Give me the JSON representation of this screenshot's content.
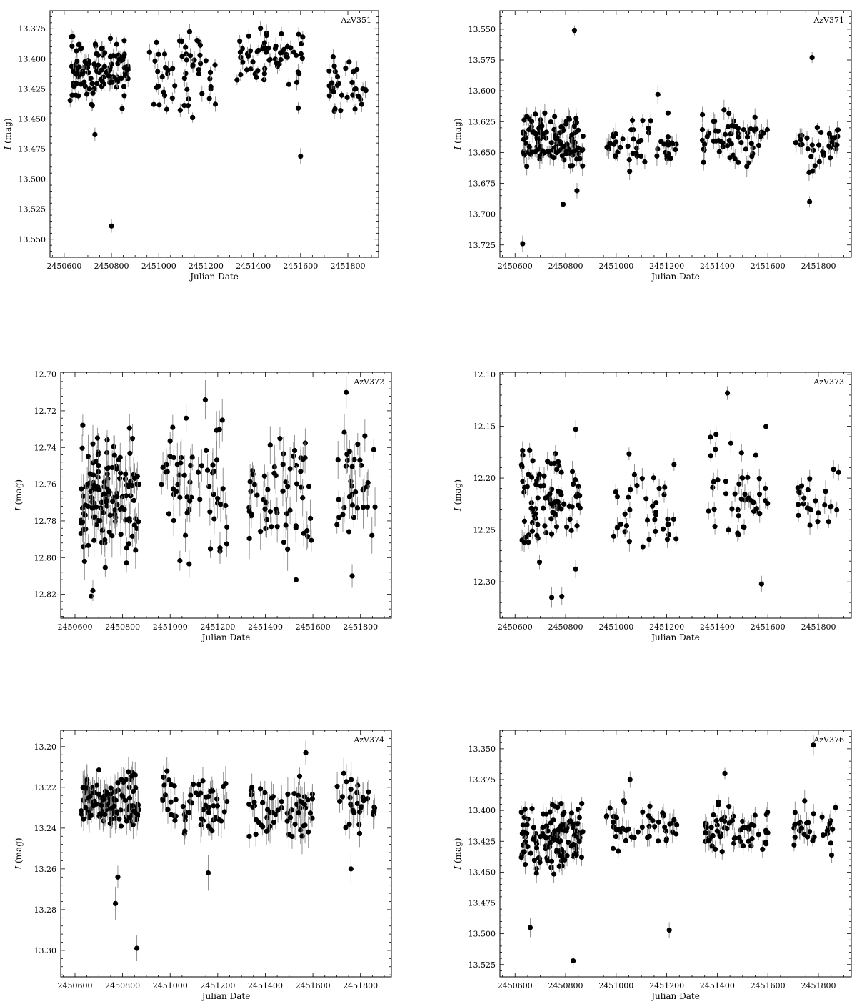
{
  "figure": {
    "xlabel": "Julian Date",
    "ylabel_var": "I",
    "ylabel_unit": " (mag)",
    "marker_color": "#000000",
    "errorbar_color": "#888888"
  },
  "chart_data": [
    {
      "type": "scatter",
      "name": "AzV351",
      "xlabel": "Julian Date",
      "ylabel": "I (mag)",
      "y_inverted": true,
      "xlim": [
        2450540,
        2451930
      ],
      "ylim": [
        13.36,
        13.565
      ],
      "xticks": [
        2450600,
        2450800,
        2451000,
        2451200,
        2451400,
        2451600,
        2451800
      ],
      "yticks": [
        13.375,
        13.4,
        13.425,
        13.45,
        13.475,
        13.5,
        13.525,
        13.55
      ],
      "ytick_labels": [
        "13.375",
        "13.400",
        "13.425",
        "13.450",
        "13.475",
        "13.500",
        "13.525",
        "13.550"
      ],
      "seasons": [
        {
          "start": 2450625,
          "end": 2450870,
          "mean": 13.41,
          "spread": 0.014,
          "n": 120
        },
        {
          "start": 2450960,
          "end": 2451240,
          "mean": 13.41,
          "spread": 0.016,
          "n": 55
        },
        {
          "start": 2451330,
          "end": 2451610,
          "mean": 13.4,
          "spread": 0.013,
          "n": 60
        },
        {
          "start": 2451700,
          "end": 2451880,
          "mean": 13.425,
          "spread": 0.01,
          "n": 35
        }
      ],
      "outliers": [
        {
          "x": 2450730,
          "y": 13.463
        },
        {
          "x": 2450800,
          "y": 13.539
        },
        {
          "x": 2451600,
          "y": 13.481
        },
        {
          "x": 2451590,
          "y": 13.441
        }
      ],
      "err": 0.005
    },
    {
      "type": "scatter",
      "name": "AzV371",
      "xlabel": "Julian Date",
      "ylabel": "I (mag)",
      "y_inverted": true,
      "xlim": [
        2450540,
        2451930
      ],
      "ylim": [
        13.535,
        13.735
      ],
      "xticks": [
        2450600,
        2450800,
        2451000,
        2451200,
        2451400,
        2451600,
        2451800
      ],
      "yticks": [
        13.55,
        13.575,
        13.6,
        13.625,
        13.65,
        13.675,
        13.7,
        13.725
      ],
      "ytick_labels": [
        "13.550",
        "13.575",
        "13.600",
        "13.625",
        "13.650",
        "13.675",
        "13.700",
        "13.725"
      ],
      "seasons": [
        {
          "start": 2450625,
          "end": 2450870,
          "mean": 13.64,
          "spread": 0.011,
          "n": 120
        },
        {
          "start": 2450960,
          "end": 2451240,
          "mean": 13.643,
          "spread": 0.01,
          "n": 50
        },
        {
          "start": 2451340,
          "end": 2451600,
          "mean": 13.638,
          "spread": 0.01,
          "n": 60
        },
        {
          "start": 2451710,
          "end": 2451880,
          "mean": 13.645,
          "spread": 0.01,
          "n": 35
        }
      ],
      "outliers": [
        {
          "x": 2450835,
          "y": 13.551
        },
        {
          "x": 2451775,
          "y": 13.573
        },
        {
          "x": 2450630,
          "y": 13.724
        },
        {
          "x": 2451765,
          "y": 13.69
        },
        {
          "x": 2450790,
          "y": 13.692
        },
        {
          "x": 2450845,
          "y": 13.681
        },
        {
          "x": 2451165,
          "y": 13.603
        }
      ],
      "err": 0.006
    },
    {
      "type": "scatter",
      "name": "AzV372",
      "xlabel": "Julian Date",
      "ylabel": "I (mag)",
      "y_inverted": true,
      "xlim": [
        2450540,
        2451930
      ],
      "ylim": [
        12.699,
        12.833
      ],
      "xticks": [
        2450600,
        2450800,
        2451000,
        2451200,
        2451400,
        2451600,
        2451800
      ],
      "yticks": [
        12.7,
        12.72,
        12.74,
        12.76,
        12.78,
        12.8,
        12.82
      ],
      "ytick_labels": [
        "12.70",
        "12.72",
        "12.74",
        "12.76",
        "12.78",
        "12.80",
        "12.82"
      ],
      "seasons": [
        {
          "start": 2450625,
          "end": 2450870,
          "mean": 12.765,
          "spread": 0.015,
          "n": 130
        },
        {
          "start": 2450960,
          "end": 2451240,
          "mean": 12.762,
          "spread": 0.018,
          "n": 60
        },
        {
          "start": 2451330,
          "end": 2451600,
          "mean": 12.768,
          "spread": 0.018,
          "n": 60
        },
        {
          "start": 2451700,
          "end": 2451880,
          "mean": 12.765,
          "spread": 0.015,
          "n": 35
        }
      ],
      "outliers": [
        {
          "x": 2450640,
          "y": 12.802
        },
        {
          "x": 2450668,
          "y": 12.821
        },
        {
          "x": 2450675,
          "y": 12.818
        },
        {
          "x": 2451740,
          "y": 12.71
        },
        {
          "x": 2451765,
          "y": 12.81
        }
      ],
      "err": 0.008
    },
    {
      "type": "scatter",
      "name": "AzV373",
      "xlabel": "Julian Date",
      "ylabel": "I (mag)",
      "y_inverted": true,
      "xlim": [
        2450540,
        2451930
      ],
      "ylim": [
        12.098,
        12.335
      ],
      "xticks": [
        2450600,
        2450800,
        2451000,
        2451200,
        2451400,
        2451600,
        2451800
      ],
      "yticks": [
        12.1,
        12.15,
        12.2,
        12.25,
        12.3
      ],
      "ytick_labels": [
        "12.10",
        "12.15",
        "12.20",
        "12.25",
        "12.30"
      ],
      "seasons": [
        {
          "start": 2450625,
          "end": 2450870,
          "mean": 12.225,
          "spread": 0.025,
          "n": 90
        },
        {
          "start": 2450990,
          "end": 2451240,
          "mean": 12.235,
          "spread": 0.025,
          "n": 40
        },
        {
          "start": 2451360,
          "end": 2451600,
          "mean": 12.215,
          "spread": 0.025,
          "n": 45
        },
        {
          "start": 2451710,
          "end": 2451880,
          "mean": 12.225,
          "spread": 0.02,
          "n": 25
        }
      ],
      "outliers": [
        {
          "x": 2451440,
          "y": 12.118
        },
        {
          "x": 2450840,
          "y": 12.153
        },
        {
          "x": 2450745,
          "y": 12.315
        },
        {
          "x": 2450785,
          "y": 12.314
        },
        {
          "x": 2451575,
          "y": 12.302
        }
      ],
      "err": 0.007
    },
    {
      "type": "scatter",
      "name": "AzV374",
      "xlabel": "Julian Date",
      "ylabel": "I (mag)",
      "y_inverted": true,
      "xlim": [
        2450540,
        2451930
      ],
      "ylim": [
        13.192,
        13.313
      ],
      "xticks": [
        2450600,
        2450800,
        2451000,
        2451200,
        2451400,
        2451600,
        2451800
      ],
      "yticks": [
        13.2,
        13.22,
        13.24,
        13.26,
        13.28,
        13.3
      ],
      "ytick_labels": [
        "13.20",
        "13.22",
        "13.24",
        "13.26",
        "13.28",
        "13.30"
      ],
      "seasons": [
        {
          "start": 2450625,
          "end": 2450870,
          "mean": 13.227,
          "spread": 0.007,
          "n": 130
        },
        {
          "start": 2450960,
          "end": 2451240,
          "mean": 13.228,
          "spread": 0.007,
          "n": 60
        },
        {
          "start": 2451330,
          "end": 2451600,
          "mean": 13.23,
          "spread": 0.007,
          "n": 60
        },
        {
          "start": 2451700,
          "end": 2451880,
          "mean": 13.228,
          "spread": 0.007,
          "n": 30
        }
      ],
      "outliers": [
        {
          "x": 2450860,
          "y": 13.299
        },
        {
          "x": 2450770,
          "y": 13.277
        },
        {
          "x": 2450780,
          "y": 13.264
        },
        {
          "x": 2451570,
          "y": 13.203
        },
        {
          "x": 2451160,
          "y": 13.262
        },
        {
          "x": 2451760,
          "y": 13.26
        }
      ],
      "err": 0.006
    },
    {
      "type": "scatter",
      "name": "AzV376",
      "xlabel": "Julian Date",
      "ylabel": "I (mag)",
      "y_inverted": true,
      "xlim": [
        2450540,
        2451930
      ],
      "ylim": [
        13.335,
        13.535
      ],
      "xticks": [
        2450600,
        2450800,
        2451000,
        2451200,
        2451400,
        2451600,
        2451800
      ],
      "yticks": [
        13.35,
        13.375,
        13.4,
        13.425,
        13.45,
        13.475,
        13.5,
        13.525
      ],
      "ytick_labels": [
        "13.350",
        "13.375",
        "13.400",
        "13.425",
        "13.450",
        "13.475",
        "13.500",
        "13.525"
      ],
      "seasons": [
        {
          "start": 2450625,
          "end": 2450870,
          "mean": 13.422,
          "spread": 0.014,
          "n": 130
        },
        {
          "start": 2450960,
          "end": 2451240,
          "mean": 13.413,
          "spread": 0.008,
          "n": 50
        },
        {
          "start": 2451340,
          "end": 2451600,
          "mean": 13.415,
          "spread": 0.009,
          "n": 60
        },
        {
          "start": 2451700,
          "end": 2451880,
          "mean": 13.412,
          "spread": 0.01,
          "n": 30
        }
      ],
      "outliers": [
        {
          "x": 2451780,
          "y": 13.347
        },
        {
          "x": 2450830,
          "y": 13.522
        },
        {
          "x": 2450660,
          "y": 13.495
        },
        {
          "x": 2451210,
          "y": 13.497
        },
        {
          "x": 2451430,
          "y": 13.37
        },
        {
          "x": 2451055,
          "y": 13.375
        }
      ],
      "err": 0.006
    }
  ]
}
